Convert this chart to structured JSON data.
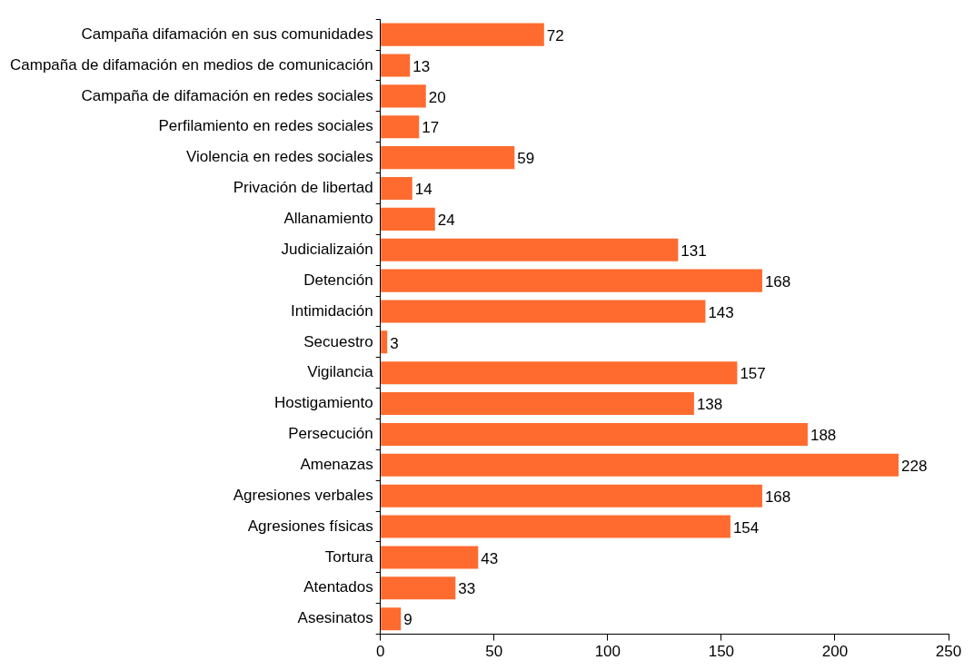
{
  "chart_data": {
    "type": "bar",
    "orientation": "horizontal",
    "categories": [
      "Campaña difamación en sus comunidades",
      "Campaña de difamación en medios de comunicación",
      "Campaña de difamación en redes sociales",
      "Perfilamiento en redes sociales",
      "Violencia en redes sociales",
      "Privación de libertad",
      "Allanamiento",
      "Judicializaión",
      "Detención",
      "Intimidación",
      "Secuestro",
      "Vigilancia",
      "Hostigamiento",
      "Persecución",
      "Amenazas",
      "Agresiones verbales",
      "Agresiones físicas",
      "Tortura",
      "Atentados",
      "Asesinatos"
    ],
    "values": [
      72,
      13,
      20,
      17,
      59,
      14,
      24,
      131,
      168,
      143,
      3,
      157,
      138,
      188,
      228,
      168,
      154,
      43,
      33,
      9
    ],
    "color": "#ff6b2f",
    "xlim": [
      0,
      250
    ],
    "xticks": [
      0,
      50,
      100,
      150,
      200,
      250
    ],
    "data_labels": true,
    "grid": false,
    "legend": false
  }
}
